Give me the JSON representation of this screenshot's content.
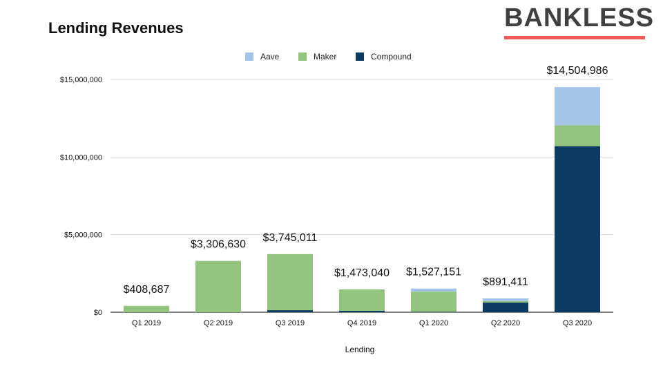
{
  "brand": {
    "name": "BANKLESS"
  },
  "chart_data": {
    "type": "bar",
    "stacked": true,
    "title": "Lending Revenues",
    "xlabel": "Lending",
    "ylabel": "",
    "ylim": [
      0,
      15000000
    ],
    "y_ticks": [
      0,
      5000000,
      10000000,
      15000000
    ],
    "y_tick_labels": [
      "$0",
      "$5,000,000",
      "$10,000,000",
      "$15,000,000"
    ],
    "grid": true,
    "legend_position": "top",
    "categories": [
      "Q1 2019",
      "Q2 2019",
      "Q3 2019",
      "Q4 2019",
      "Q1 2020",
      "Q2 2020",
      "Q3 2020"
    ],
    "series": [
      {
        "name": "Compound",
        "color": "#0b3a62",
        "values": [
          0,
          0,
          130000,
          90000,
          30000,
          620000,
          10700000
        ]
      },
      {
        "name": "Maker",
        "color": "#93c47d",
        "values": [
          408687,
          3306630,
          3615011,
          1383040,
          1297151,
          100000,
          1350000
        ]
      },
      {
        "name": "Aave",
        "color": "#a4c5e8",
        "values": [
          0,
          0,
          0,
          0,
          200000,
          171411,
          2454986
        ]
      }
    ],
    "legend_order": [
      "Aave",
      "Maker",
      "Compound"
    ],
    "total_labels": [
      "$408,687",
      "$3,306,630",
      "$3,745,011",
      "$1,473,040",
      "$1,527,151",
      "$891,411",
      "$14,504,986"
    ]
  }
}
